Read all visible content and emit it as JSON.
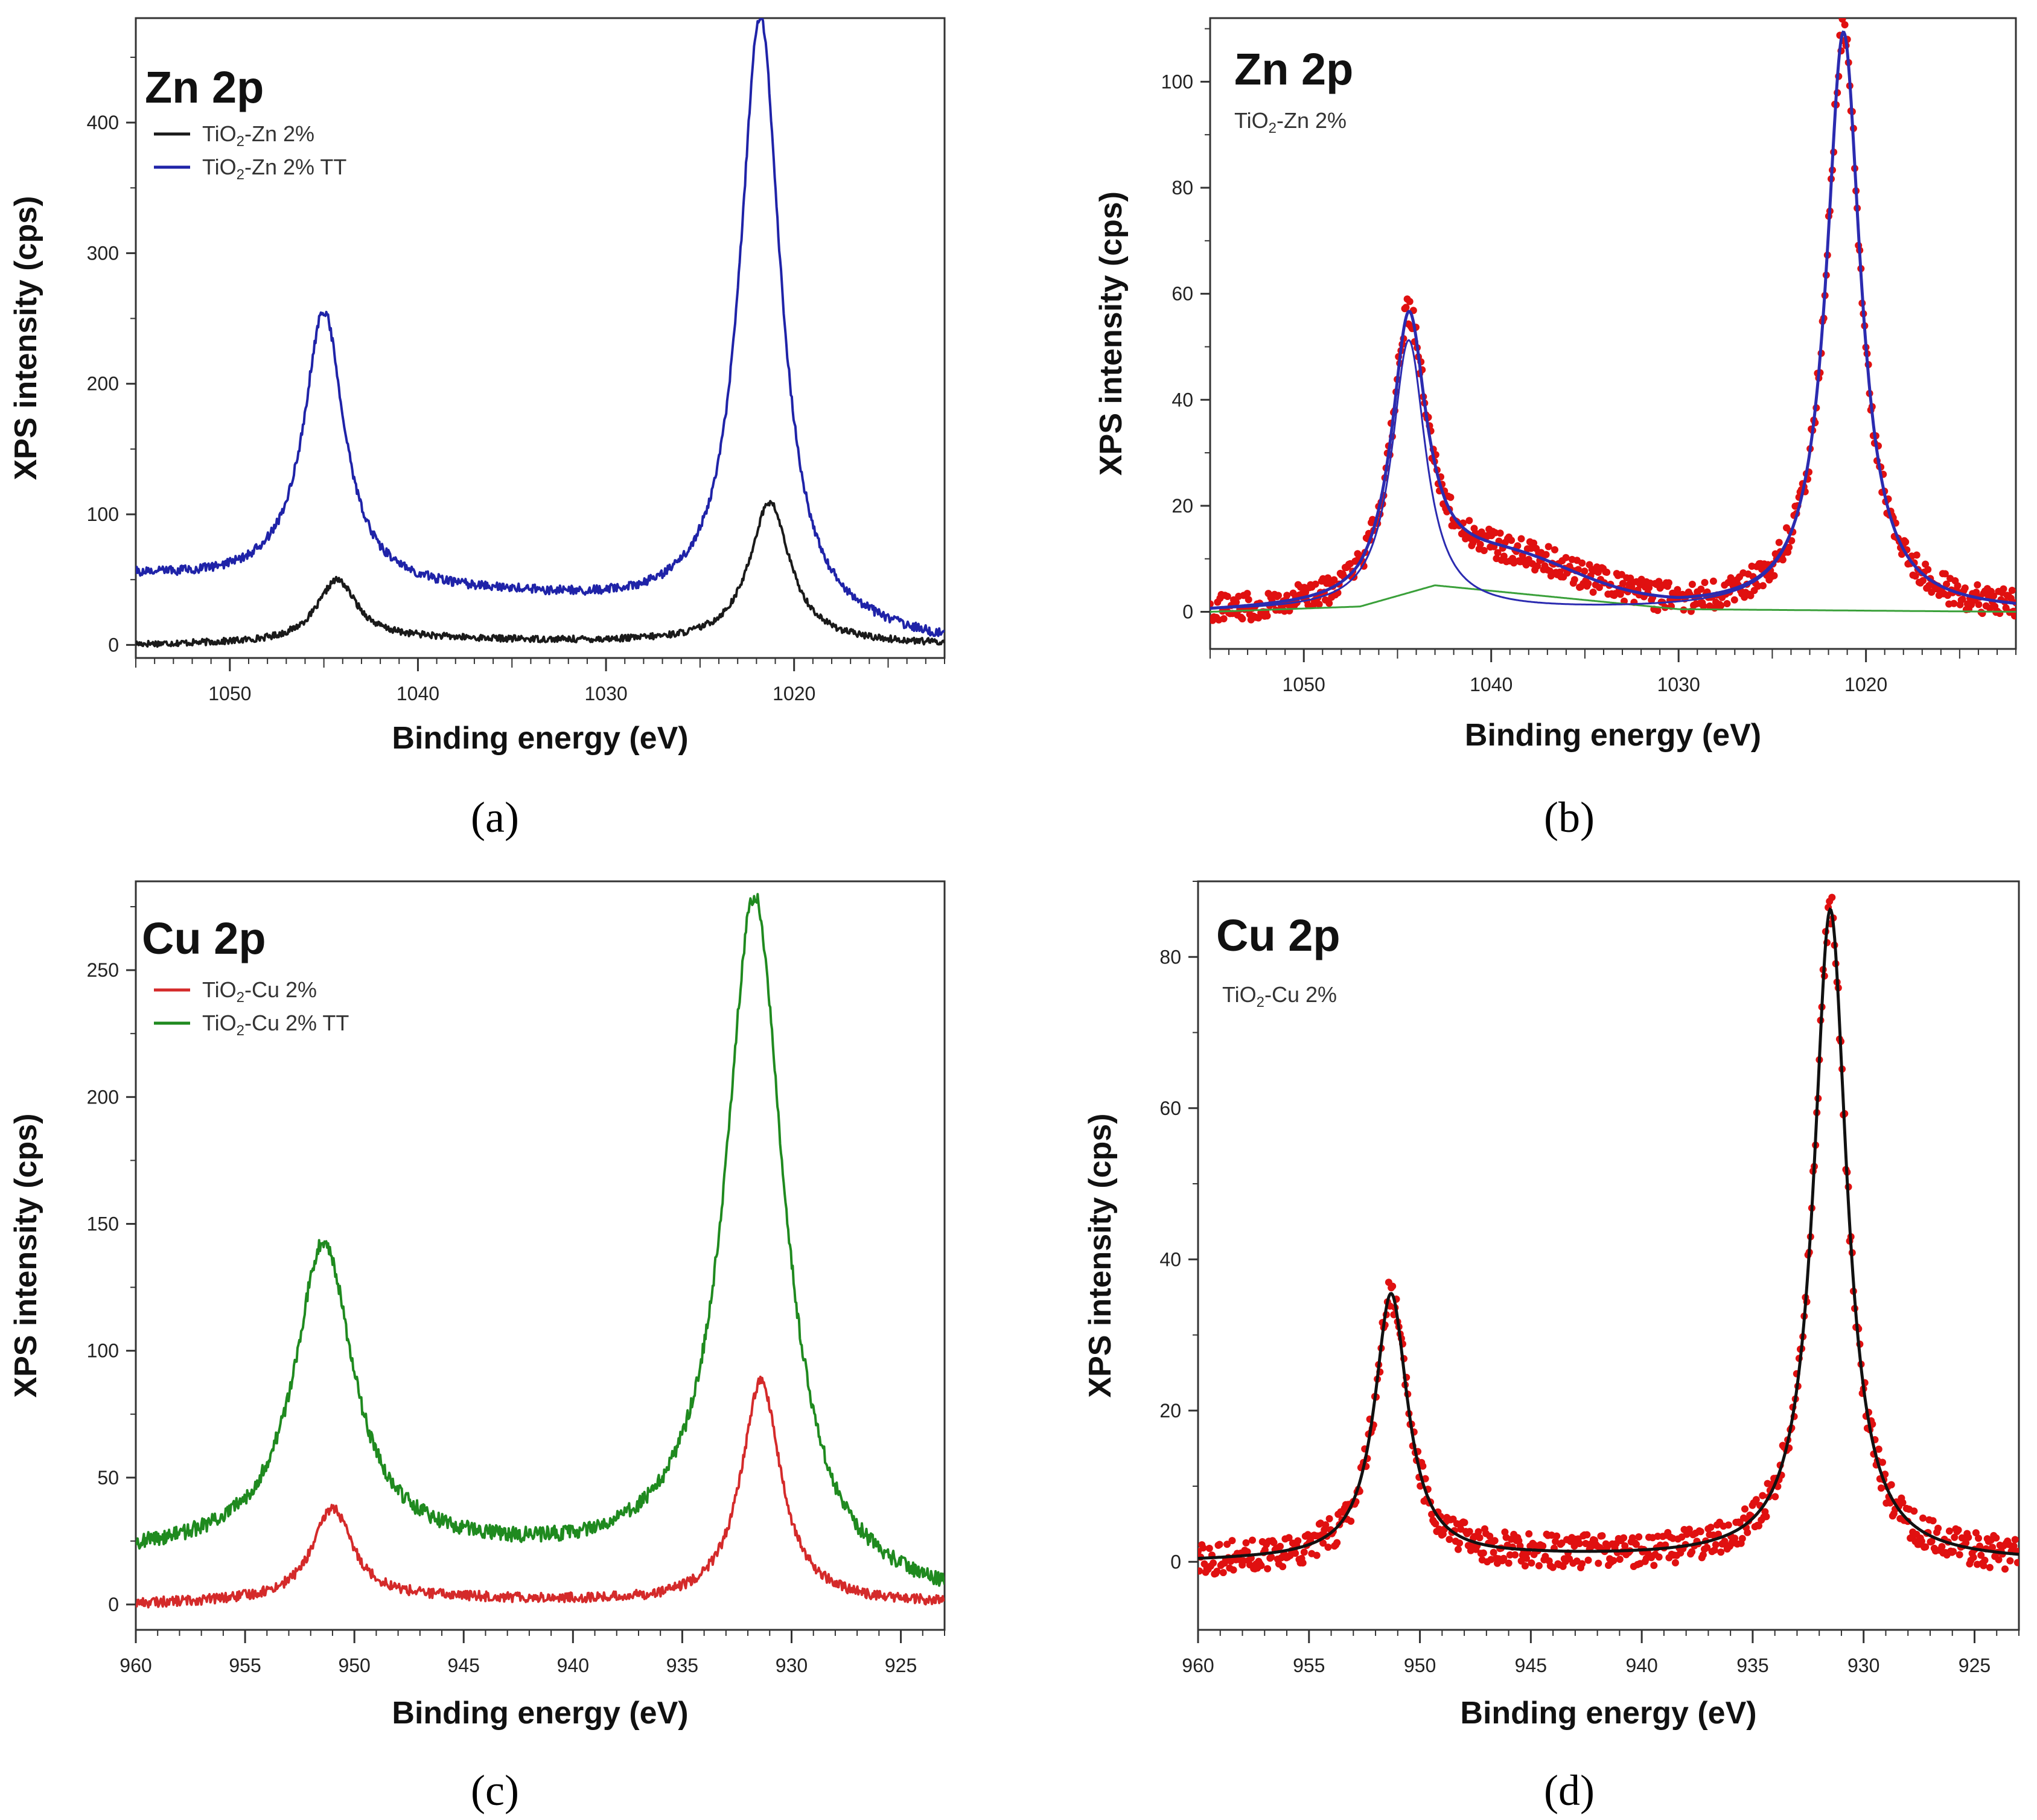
{
  "chart_data": [
    {
      "panel": "(a)",
      "type": "line",
      "title": "Zn 2p",
      "subtitle": "",
      "xlabel": "Binding energy (eV)",
      "ylabel": "XPS intensity (cps)",
      "xlim": [
        1055,
        1012
      ],
      "ylim": [
        -10,
        480
      ],
      "xticks": [
        1050,
        1040,
        1030,
        1020
      ],
      "yticks": [
        0,
        100,
        200,
        300,
        400
      ],
      "legend": "top-left",
      "peaks_note": "Lorentzian-like peaks",
      "series": [
        {
          "name": "TiO2-Zn 2%",
          "legend_main": "TiO",
          "legend_sub": "2",
          "legend_rest": "-Zn 2%",
          "color": "#1a1a1a",
          "baseline": [
            [
              1055,
              0
            ],
            [
              1045,
              1
            ],
            [
              1040,
              4
            ],
            [
              1030,
              2
            ],
            [
              1012,
              0
            ]
          ],
          "peaks": [
            [
              1044.3,
              48,
              1.3
            ],
            [
              1021.3,
              108,
              1.3
            ]
          ],
          "noise": 2.5
        },
        {
          "name": "TiO2-Zn 2% TT",
          "legend_main": "TiO",
          "legend_sub": "2",
          "legend_rest": "-Zn 2% TT",
          "color": "#1f23a8",
          "baseline": [
            [
              1055,
              52
            ],
            [
              1048,
              48
            ],
            [
              1043,
              42
            ],
            [
              1035,
              36
            ],
            [
              1025,
              24
            ],
            [
              1022,
              20
            ],
            [
              1019,
              10
            ],
            [
              1012,
              0
            ]
          ],
          "peaks": [
            [
              1045.0,
              210,
              1.3
            ],
            [
              1021.8,
              462,
              1.3
            ]
          ],
          "noise": 3.5
        }
      ]
    },
    {
      "panel": "(b)",
      "type": "scatter",
      "title": "Zn 2p",
      "subtitle_main": "TiO",
      "subtitle_sub": "2",
      "subtitle_rest": "-Zn 2%",
      "xlabel": "Binding energy (eV)",
      "ylabel": "XPS intensity (cps)",
      "xlim": [
        1055,
        1012
      ],
      "ylim": [
        -7,
        112
      ],
      "xticks": [
        1050,
        1040,
        1030,
        1020
      ],
      "yticks": [
        0,
        20,
        40,
        60,
        80,
        100
      ],
      "data_color": "#e01010",
      "fit_color": "#111111",
      "component_color": "#2b2bb0",
      "background_color": "#3aa03a",
      "peaks": [
        [
          1044.4,
          51,
          1.1
        ],
        [
          1021.2,
          109,
          1.1
        ]
      ],
      "satellite": [
        1039,
        6,
        3.5
      ],
      "background": [
        [
          1055,
          0
        ],
        [
          1047,
          1
        ],
        [
          1043,
          5
        ],
        [
          1030,
          0.5
        ],
        [
          1012,
          0
        ]
      ],
      "noise": 2.8
    },
    {
      "panel": "(c)",
      "type": "line",
      "title": "Cu 2p",
      "subtitle": "",
      "xlabel": "Binding energy (eV)",
      "ylabel": "XPS intensity (cps)",
      "xlim": [
        960,
        923
      ],
      "ylim": [
        -10,
        285
      ],
      "xticks": [
        960,
        955,
        950,
        945,
        940,
        935,
        930,
        925
      ],
      "yticks": [
        0,
        50,
        100,
        150,
        200,
        250
      ],
      "legend": "top-left",
      "series": [
        {
          "name": "TiO2-Cu 2%",
          "legend_main": "TiO",
          "legend_sub": "2",
          "legend_rest": "-Cu 2%",
          "color": "#d42a2a",
          "baseline": [
            [
              960,
              0
            ],
            [
              950,
              2
            ],
            [
              945,
              2
            ],
            [
              935,
              0
            ],
            [
              923,
              0
            ]
          ],
          "peaks": [
            [
              951.0,
              36,
              1.1
            ],
            [
              931.4,
              88,
              1.1
            ]
          ],
          "noise": 2
        },
        {
          "name": "TiO2-Cu 2% TT",
          "legend_main": "TiO",
          "legend_sub": "2",
          "legend_rest": "-Cu 2% TT",
          "color": "#1f8a1f",
          "baseline": [
            [
              960,
              20
            ],
            [
              952,
              22
            ],
            [
              948,
              21
            ],
            [
              940,
              17
            ],
            [
              934,
              15
            ],
            [
              931,
              12
            ],
            [
              928,
              4
            ],
            [
              923,
              0
            ]
          ],
          "peaks": [
            [
              951.4,
              120,
              1.6
            ],
            [
              931.7,
              266,
              1.6
            ]
          ],
          "noise": 3
        }
      ]
    },
    {
      "panel": "(d)",
      "type": "scatter",
      "title": "Cu 2p",
      "subtitle_main": "TiO",
      "subtitle_sub": "2",
      "subtitle_rest": "-Cu 2%",
      "xlabel": "Binding energy (eV)",
      "ylabel": "XPS intensity (cps)",
      "xlim": [
        960,
        923
      ],
      "ylim": [
        -9,
        90
      ],
      "xticks": [
        960,
        955,
        950,
        945,
        940,
        935,
        930,
        925
      ],
      "yticks": [
        0,
        20,
        40,
        60,
        80
      ],
      "data_color": "#e01010",
      "fit_color": "#111111",
      "peaks": [
        [
          951.3,
          35,
          0.9
        ],
        [
          931.5,
          86,
          0.9
        ]
      ],
      "background": [
        [
          960,
          0
        ],
        [
          955,
          0.2
        ],
        [
          945,
          0.5
        ],
        [
          935,
          0.3
        ],
        [
          923,
          0
        ]
      ],
      "noise": 2.2
    }
  ]
}
